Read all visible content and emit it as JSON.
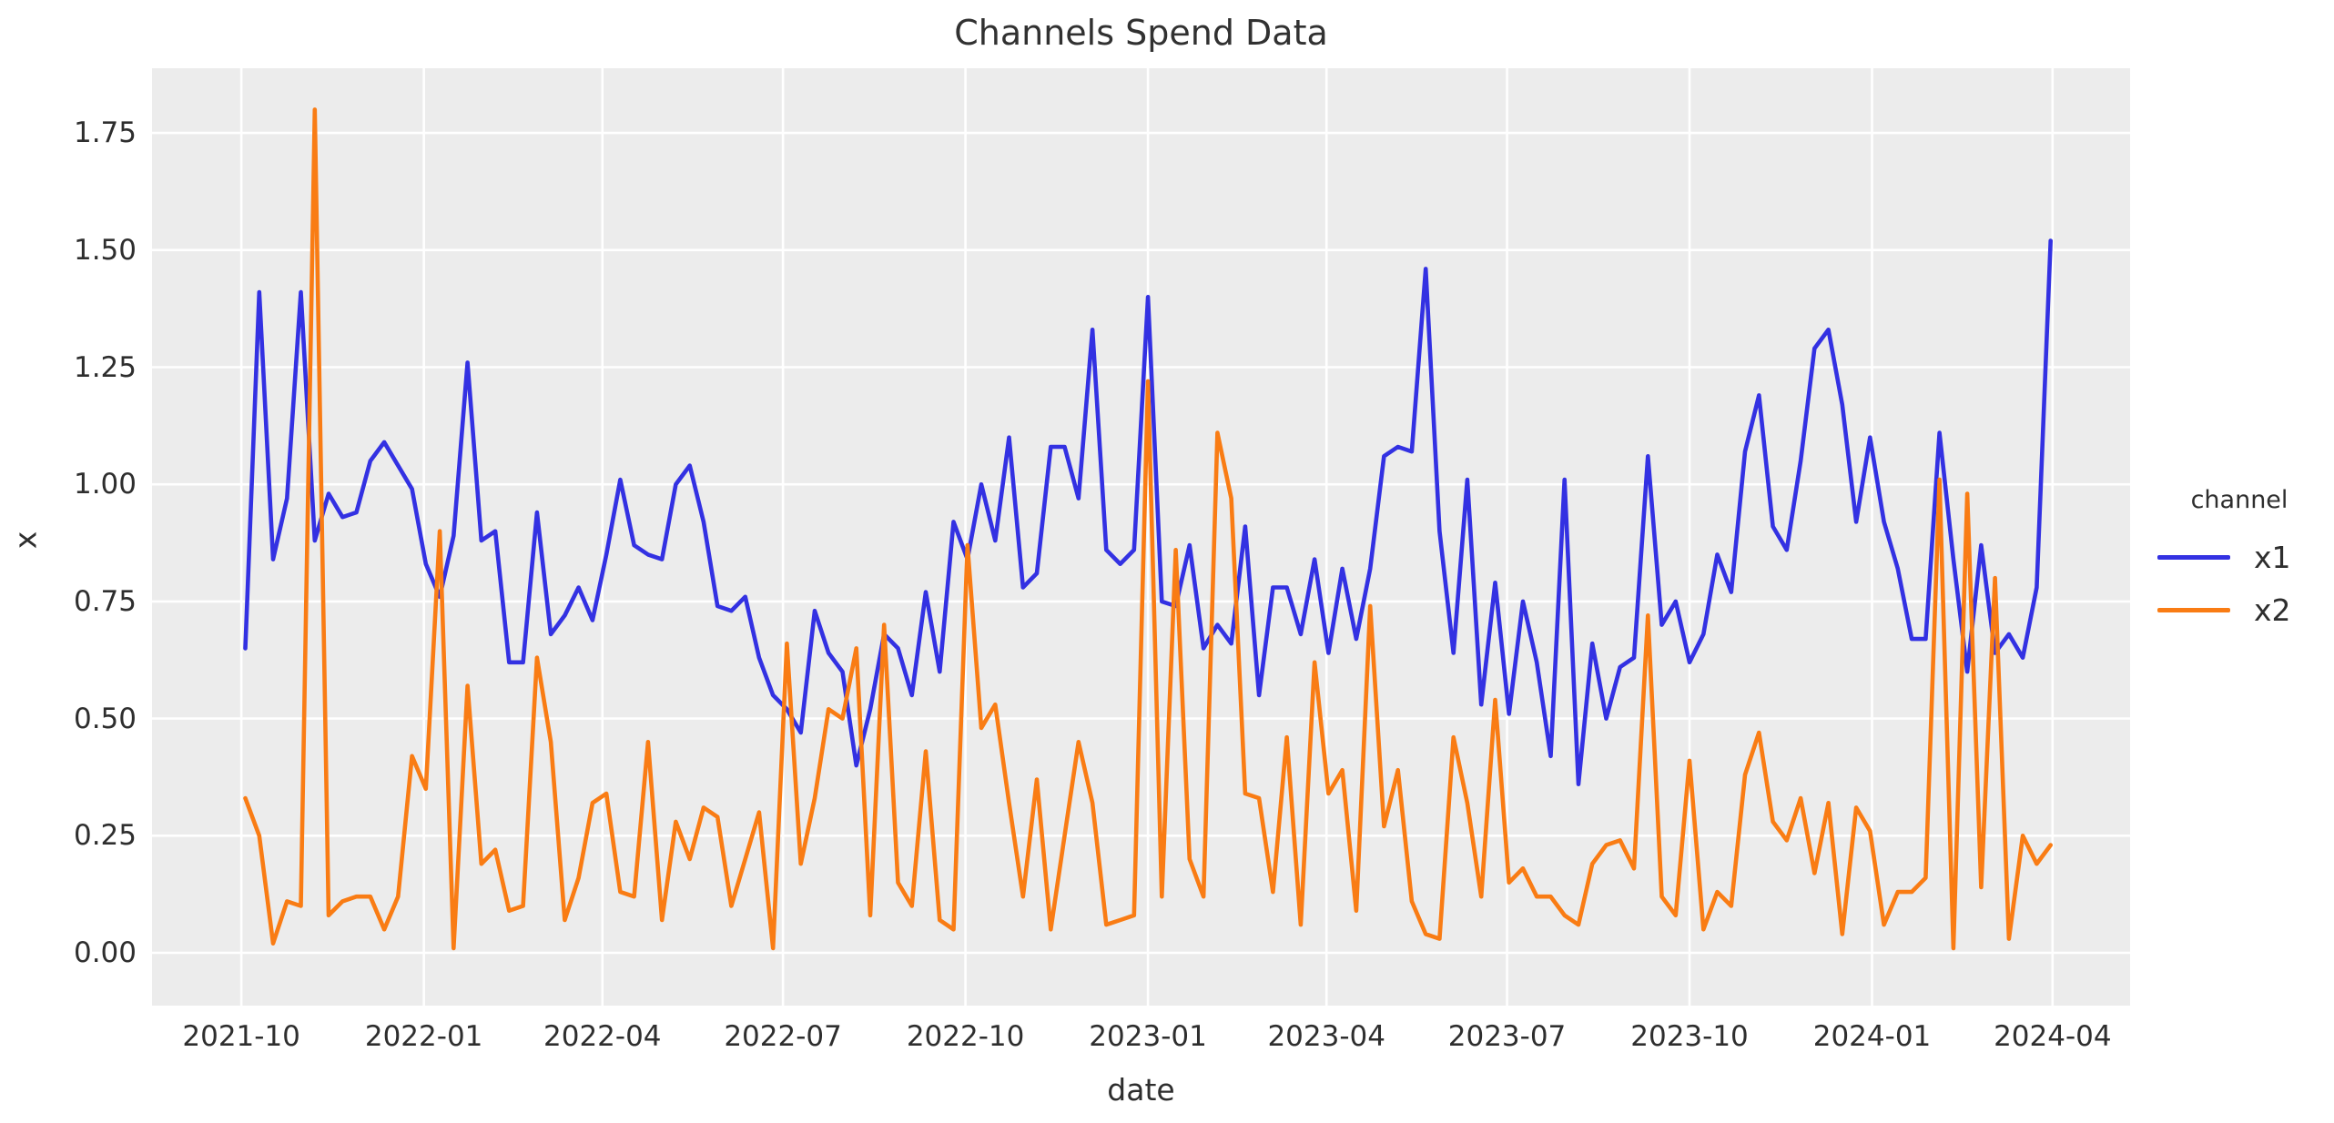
{
  "figure": {
    "title": "Channels Spend Data"
  },
  "chart_data": {
    "type": "line",
    "title": "Channels Spend Data",
    "xlabel": "date",
    "ylabel": "x",
    "legend_title": "channel",
    "legend_position": "right",
    "grid": true,
    "plot_background": "#ececec",
    "grid_color": "#ffffff",
    "x_start_date": "2021-10-03",
    "x_step_days": 7,
    "n_points": 131,
    "x_ticks": [
      {
        "label": "2021-10",
        "date": "2021-10-01"
      },
      {
        "label": "2022-01",
        "date": "2022-01-01"
      },
      {
        "label": "2022-04",
        "date": "2022-04-01"
      },
      {
        "label": "2022-07",
        "date": "2022-07-01"
      },
      {
        "label": "2022-10",
        "date": "2022-10-01"
      },
      {
        "label": "2023-01",
        "date": "2023-01-01"
      },
      {
        "label": "2023-04",
        "date": "2023-04-01"
      },
      {
        "label": "2023-07",
        "date": "2023-07-01"
      },
      {
        "label": "2023-10",
        "date": "2023-10-01"
      },
      {
        "label": "2024-01",
        "date": "2024-01-01"
      },
      {
        "label": "2024-04",
        "date": "2024-04-01"
      }
    ],
    "y_ticks": [
      "0.00",
      "0.25",
      "0.50",
      "0.75",
      "1.00",
      "1.25",
      "1.50",
      "1.75"
    ],
    "ylim": [
      -0.11,
      1.89
    ],
    "series": [
      {
        "name": "x1",
        "color": "#3331e2",
        "values": [
          0.65,
          1.41,
          0.84,
          0.97,
          1.41,
          0.88,
          0.98,
          0.93,
          0.94,
          1.05,
          1.09,
          1.04,
          0.99,
          0.83,
          0.76,
          0.89,
          1.26,
          0.88,
          0.9,
          0.62,
          0.62,
          0.94,
          0.68,
          0.72,
          0.78,
          0.71,
          0.85,
          1.01,
          0.87,
          0.85,
          0.84,
          1.0,
          1.04,
          0.92,
          0.74,
          0.73,
          0.76,
          0.63,
          0.55,
          0.52,
          0.47,
          0.73,
          0.64,
          0.6,
          0.4,
          0.52,
          0.68,
          0.65,
          0.55,
          0.77,
          0.6,
          0.92,
          0.84,
          1.0,
          0.88,
          1.1,
          0.78,
          0.81,
          1.08,
          1.08,
          0.97,
          1.33,
          0.86,
          0.83,
          0.86,
          1.4,
          0.75,
          0.74,
          0.87,
          0.65,
          0.7,
          0.66,
          0.91,
          0.55,
          0.78,
          0.78,
          0.68,
          0.84,
          0.64,
          0.82,
          0.67,
          0.82,
          1.06,
          1.08,
          1.07,
          1.46,
          0.9,
          0.64,
          1.01,
          0.53,
          0.79,
          0.51,
          0.75,
          0.62,
          0.42,
          1.01,
          0.36,
          0.66,
          0.5,
          0.61,
          0.63,
          1.06,
          0.7,
          0.75,
          0.62,
          0.68,
          0.85,
          0.77,
          1.07,
          1.19,
          0.91,
          0.86,
          1.05,
          1.29,
          1.33,
          1.17,
          0.92,
          1.1,
          0.92,
          0.82,
          0.67,
          0.67,
          1.11,
          0.84,
          0.6,
          0.87,
          0.64,
          0.68,
          0.63,
          0.78,
          1.52
        ]
      },
      {
        "name": "x2",
        "color": "#f97c14",
        "values": [
          0.33,
          0.25,
          0.02,
          0.11,
          0.1,
          1.8,
          0.08,
          0.11,
          0.12,
          0.12,
          0.05,
          0.12,
          0.42,
          0.35,
          0.9,
          0.01,
          0.57,
          0.19,
          0.22,
          0.09,
          0.1,
          0.63,
          0.45,
          0.07,
          0.16,
          0.32,
          0.34,
          0.13,
          0.12,
          0.45,
          0.07,
          0.28,
          0.2,
          0.31,
          0.29,
          0.1,
          0.2,
          0.3,
          0.01,
          0.66,
          0.19,
          0.33,
          0.52,
          0.5,
          0.65,
          0.08,
          0.7,
          0.15,
          0.1,
          0.43,
          0.07,
          0.05,
          0.87,
          0.48,
          0.53,
          0.32,
          0.12,
          0.37,
          0.05,
          0.25,
          0.45,
          0.32,
          0.06,
          0.07,
          0.08,
          1.22,
          0.12,
          0.86,
          0.2,
          0.12,
          1.11,
          0.97,
          0.34,
          0.33,
          0.13,
          0.46,
          0.06,
          0.62,
          0.34,
          0.39,
          0.09,
          0.74,
          0.27,
          0.39,
          0.11,
          0.04,
          0.03,
          0.46,
          0.32,
          0.12,
          0.54,
          0.15,
          0.18,
          0.12,
          0.12,
          0.08,
          0.06,
          0.19,
          0.23,
          0.24,
          0.18,
          0.72,
          0.12,
          0.08,
          0.41,
          0.05,
          0.13,
          0.1,
          0.38,
          0.47,
          0.28,
          0.24,
          0.33,
          0.17,
          0.32,
          0.04,
          0.31,
          0.26,
          0.06,
          0.13,
          0.13,
          0.16,
          1.01,
          0.01,
          0.98,
          0.14,
          0.8,
          0.03,
          0.25,
          0.19,
          0.23
        ]
      }
    ]
  }
}
